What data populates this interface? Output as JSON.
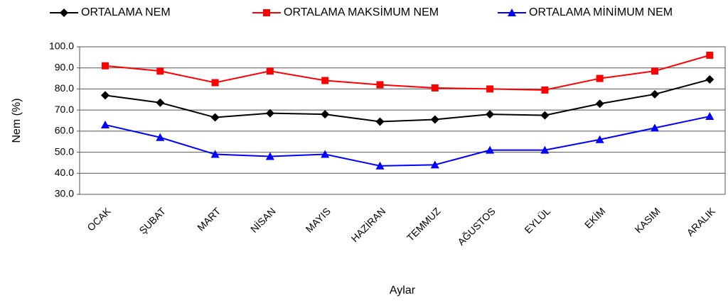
{
  "chart_data": {
    "type": "line",
    "x_label": "Aylar",
    "y_label": "Nem (%)",
    "categories": [
      "OCAK",
      "ŞUBAT",
      "MART",
      "NİSAN",
      "MAYIS",
      "HAZİRAN",
      "TEMMUZ",
      "AĞUSTOS",
      "EYLÜL",
      "EKİM",
      "KASIM",
      "ARALIK"
    ],
    "series": [
      {
        "name": "ORTALAMA NEM",
        "color": "#000000",
        "marker": "diamond",
        "values": [
          77,
          73.5,
          66.5,
          68.5,
          68,
          64.5,
          65.5,
          68,
          67.5,
          73,
          77.5,
          84.5
        ]
      },
      {
        "name": "ORTALAMA MAKSİMUM NEM",
        "color": "#ff0000",
        "marker": "square",
        "values": [
          91,
          88.5,
          83,
          88.5,
          84,
          82,
          80.5,
          80,
          79.5,
          85,
          88.5,
          96
        ]
      },
      {
        "name": "ORTALAMA MİNİMUM NEM",
        "color": "#0000ff",
        "marker": "triangle",
        "values": [
          63,
          57,
          49,
          48,
          49,
          43.5,
          44,
          51,
          51,
          56,
          61.5,
          67
        ]
      }
    ],
    "ylim": [
      30,
      100
    ],
    "yticks": [
      {
        "value": 30,
        "label": "30.0"
      },
      {
        "value": 40,
        "label": "40.0"
      },
      {
        "value": 50,
        "label": "50.0"
      },
      {
        "value": 60,
        "label": "60.0"
      },
      {
        "value": 70,
        "label": "70.0"
      },
      {
        "value": 80,
        "label": "80.0"
      },
      {
        "value": 90,
        "label": "90.0"
      },
      {
        "value": 100,
        "label": "100.0"
      }
    ],
    "grid": true,
    "legend": "top"
  }
}
